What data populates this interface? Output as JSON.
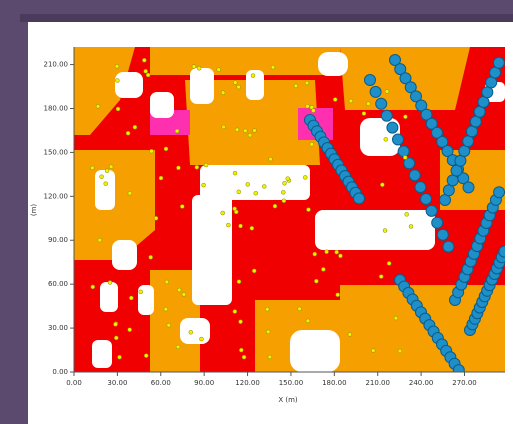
{
  "chart_data": {
    "type": "raster",
    "xlabel": "X (m)",
    "ylabel": "(m)",
    "xlim": [
      0,
      298
    ],
    "ylim": [
      0,
      222
    ],
    "xticks": [
      {
        "value": 0,
        "label": "0.00"
      },
      {
        "value": 30,
        "label": "30.00"
      },
      {
        "value": 60,
        "label": "60.00"
      },
      {
        "value": 90,
        "label": "90.00"
      },
      {
        "value": 120,
        "label": "120.00"
      },
      {
        "value": 150,
        "label": "150.00"
      },
      {
        "value": 180,
        "label": "180.00"
      },
      {
        "value": 210,
        "label": "210.00"
      },
      {
        "value": 240,
        "label": "240.00"
      },
      {
        "value": 270,
        "label": "270.00"
      }
    ],
    "yticks": [
      {
        "value": 0,
        "label": "0.00"
      },
      {
        "value": 30,
        "label": "30.00"
      },
      {
        "value": 60,
        "label": "60.00"
      },
      {
        "value": 90,
        "label": "90.00"
      },
      {
        "value": 120,
        "label": "120.00"
      },
      {
        "value": 150,
        "label": "150.00"
      },
      {
        "value": 180,
        "label": "180.00"
      },
      {
        "value": 210,
        "label": "210.00"
      }
    ]
  }
}
